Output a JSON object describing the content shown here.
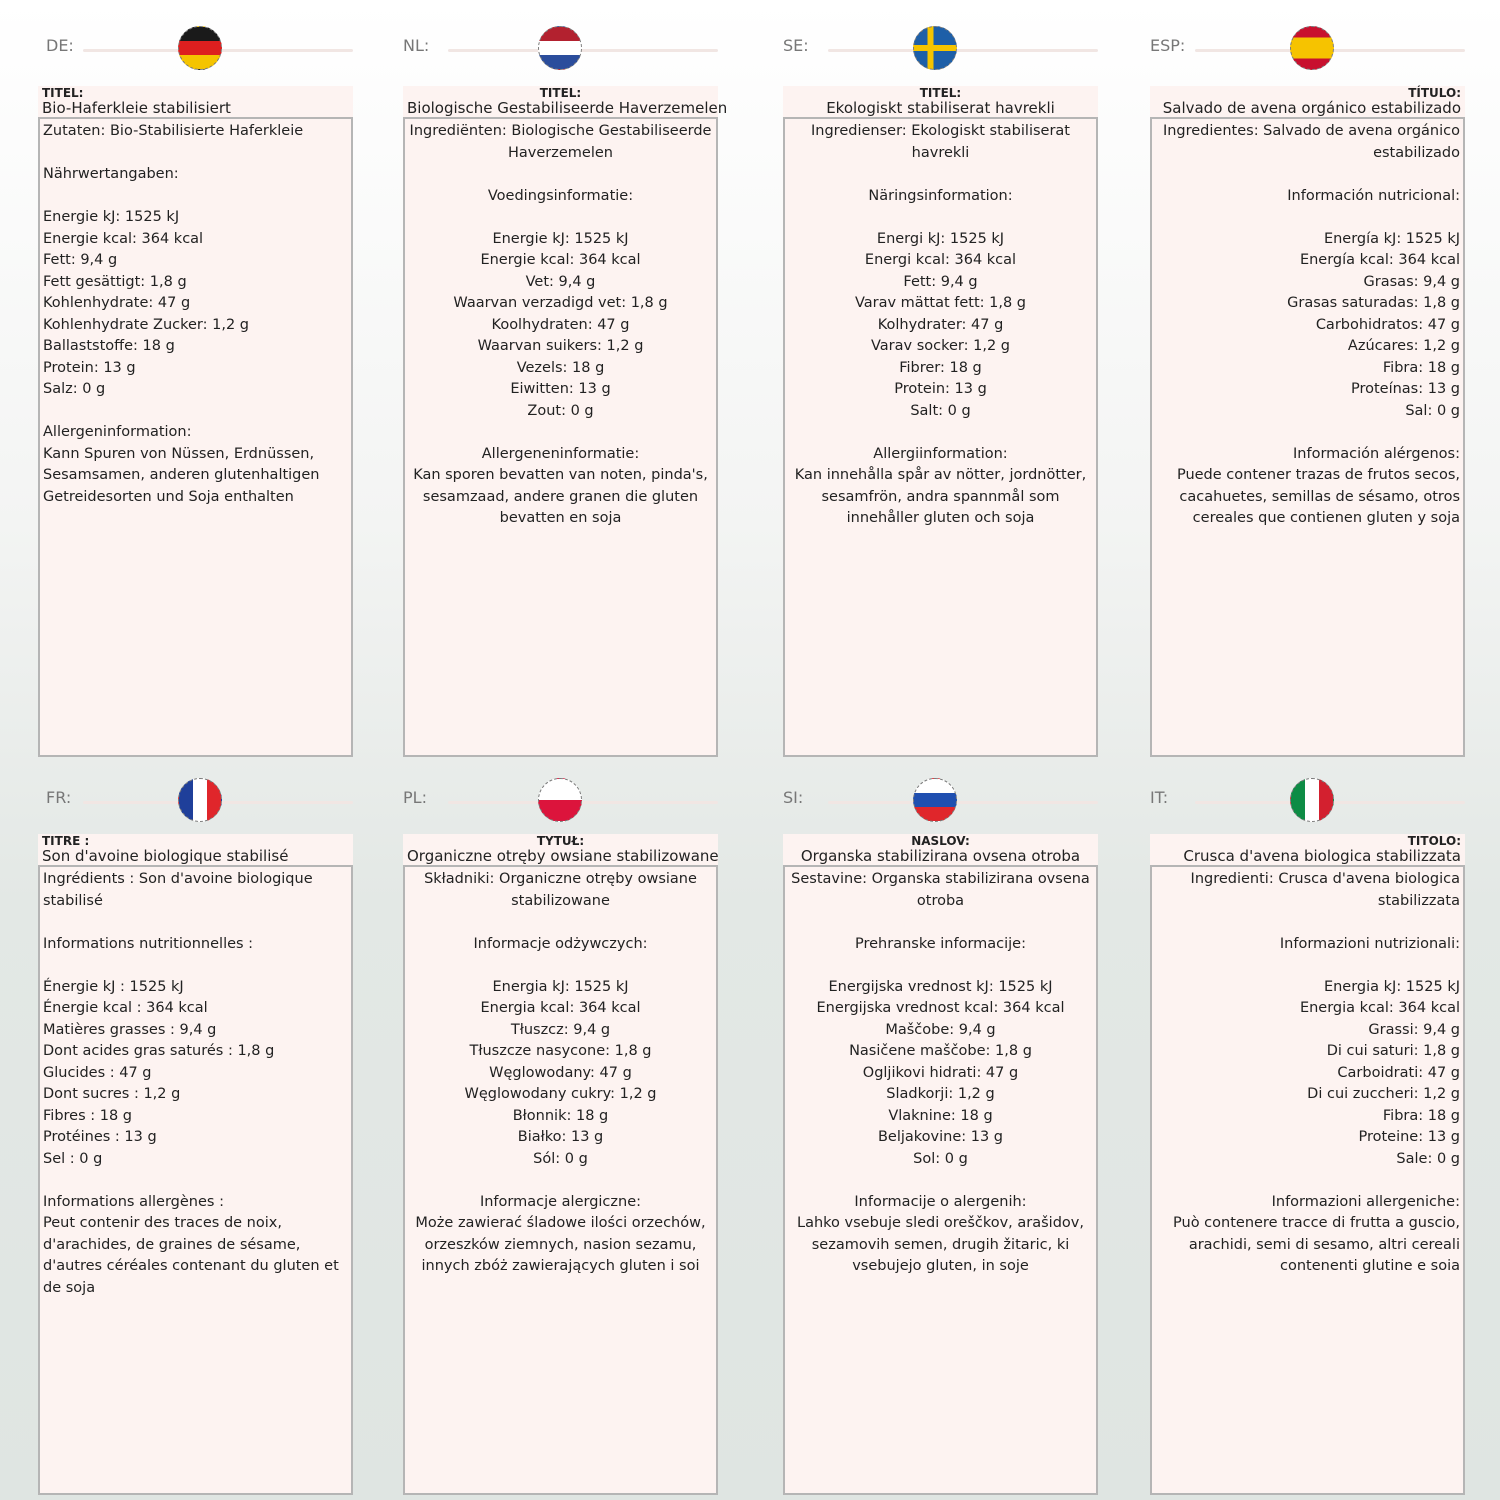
{
  "panels": [
    {
      "code": "DE:",
      "flag": "de",
      "align": "left",
      "title_label": "TITEL:",
      "title": "Bio-Haferkleie stabilisiert",
      "lines": [
        "Zutaten: Bio-Stabilisierte Haferkleie",
        "",
        "Nährwertangaben:",
        "",
        "Energie kJ: 1525 kJ",
        "Energie kcal: 364 kcal",
        "Fett: 9,4 g",
        "Fett gesättigt: 1,8 g",
        "Kohlenhydrate: 47 g",
        "Kohlenhydrate Zucker: 1,2 g",
        "Ballaststoffe: 18 g",
        "Protein: 13 g",
        "Salz: 0 g",
        "",
        "Allergeninformation:",
        "Kann Spuren von Nüssen, Erdnüssen,",
        "Sesamsamen, anderen glutenhaltigen",
        "Getreidesorten und Soja enthalten"
      ]
    },
    {
      "code": "NL:",
      "flag": "nl",
      "align": "center",
      "title_label": "TITEL:",
      "title": "Biologische Gestabiliseerde Haverzemelen",
      "lines": [
        "Ingrediënten: Biologische Gestabiliseerde",
        "Haverzemelen",
        "",
        "Voedingsinformatie:",
        "",
        "Energie kJ: 1525 kJ",
        "Energie kcal: 364 kcal",
        "Vet: 9,4 g",
        "Waarvan verzadigd vet: 1,8 g",
        "Koolhydraten: 47 g",
        "Waarvan suikers: 1,2 g",
        "Vezels: 18 g",
        "Eiwitten: 13 g",
        "Zout: 0 g",
        "",
        "Allergeneninformatie:",
        "Kan sporen bevatten van noten, pinda's,",
        "sesamzaad, andere granen die gluten",
        "bevatten en soja"
      ]
    },
    {
      "code": "SE:",
      "flag": "se",
      "align": "center",
      "title_label": "TITEL:",
      "title": "Ekologiskt stabiliserat havrekli",
      "lines": [
        "Ingredienser: Ekologiskt stabiliserat",
        "havrekli",
        "",
        "Näringsinformation:",
        "",
        "Energi kJ: 1525 kJ",
        "Energi kcal: 364 kcal",
        "Fett: 9,4 g",
        "Varav mättat fett: 1,8 g",
        "Kolhydrater: 47 g",
        "Varav socker: 1,2 g",
        "Fibrer: 18 g",
        "Protein: 13 g",
        "Salt: 0 g",
        "",
        "Allergiinformation:",
        "Kan innehålla spår av nötter, jordnötter,",
        "sesamfrön, andra spannmål som",
        "innehåller gluten och soja"
      ]
    },
    {
      "code": "ESP:",
      "flag": "es",
      "align": "right",
      "title_label": "TÍTULO:",
      "title": "Salvado de avena orgánico estabilizado",
      "lines": [
        "Ingredientes: Salvado de avena orgánico",
        "estabilizado",
        "",
        "Información nutricional:",
        "",
        "Energía kJ: 1525 kJ",
        "Energía kcal: 364 kcal",
        "Grasas: 9,4 g",
        "Grasas saturadas: 1,8 g",
        "Carbohidratos: 47 g",
        "Azúcares: 1,2 g",
        "Fibra: 18 g",
        "Proteínas: 13 g",
        "Sal: 0 g",
        "",
        "Información alérgenos:",
        "Puede contener trazas de frutos secos,",
        "cacahuetes, semillas de sésamo, otros",
        "cereales que contienen gluten y soja"
      ]
    },
    {
      "code": "FR:",
      "flag": "fr",
      "align": "left",
      "title_label": "TITRE :",
      "title": "Son d'avoine biologique stabilisé",
      "lines": [
        "Ingrédients : Son d'avoine biologique",
        "stabilisé",
        "",
        "Informations nutritionnelles :",
        "",
        "Énergie kJ : 1525 kJ",
        "Énergie kcal : 364 kcal",
        "Matières grasses : 9,4 g",
        "Dont acides gras saturés : 1,8 g",
        "Glucides : 47 g",
        "Dont sucres : 1,2 g",
        "Fibres : 18 g",
        "Protéines : 13 g",
        "Sel : 0 g",
        "",
        "Informations allergènes :",
        "Peut contenir des traces de noix,",
        "d'arachides, de graines de sésame,",
        "d'autres céréales contenant du gluten et",
        "de soja"
      ]
    },
    {
      "code": "PL:",
      "flag": "pl",
      "align": "center",
      "title_label": "TYTUŁ:",
      "title": "Organiczne otręby owsiane stabilizowane",
      "lines": [
        "Składniki: Organiczne otręby owsiane",
        "stabilizowane",
        "",
        "Informacje odżywczych:",
        "",
        "Energia kJ: 1525 kJ",
        "Energia kcal: 364 kcal",
        "Tłuszcz: 9,4 g",
        "Tłuszcze nasycone: 1,8 g",
        "Węglowodany: 47 g",
        "Węglowodany cukry: 1,2 g",
        "Błonnik: 18 g",
        "Białko: 13 g",
        "Sól: 0 g",
        "",
        "Informacje alergiczne:",
        "Może zawierać śladowe ilości orzechów,",
        "orzeszków ziemnych, nasion sezamu,",
        "innych zbóż zawierających gluten i soi"
      ]
    },
    {
      "code": "SI:",
      "flag": "si",
      "align": "center",
      "title_label": "NASLOV:",
      "title": "Organska stabilizirana ovsena otroba",
      "lines": [
        "Sestavine: Organska stabilizirana ovsena",
        "otroba",
        "",
        "Prehranske informacije:",
        "",
        "Energijska vrednost kJ: 1525 kJ",
        "Energijska vrednost kcal: 364 kcal",
        "Maščobe: 9,4 g",
        "Nasičene maščobe: 1,8 g",
        "Ogljikovi hidrati: 47 g",
        "Sladkorji: 1,2 g",
        "Vlaknine: 18 g",
        "Beljakovine: 13 g",
        "Sol: 0 g",
        "",
        "Informacije o alergenih:",
        "Lahko vsebuje sledi oreščkov, arašidov,",
        "sezamovih semen, drugih žitaric, ki",
        "vsebujejo gluten, in soje"
      ]
    },
    {
      "code": "IT:",
      "flag": "it",
      "align": "right",
      "title_label": "TITOLO:",
      "title": "Crusca d'avena biologica stabilizzata",
      "lines": [
        "Ingredienti: Crusca d'avena biologica",
        "stabilizzata",
        "",
        "Informazioni nutrizionali:",
        "",
        "Energia kJ: 1525 kJ",
        "Energia kcal: 364 kcal",
        "Grassi: 9,4 g",
        "Di cui saturi: 1,8 g",
        "Carboidrati: 47 g",
        "Di cui zuccheri: 1,2 g",
        "Fibra: 18 g",
        "Proteine: 13 g",
        "Sale: 0 g",
        "",
        "Informazioni allergeniche:",
        "Può contenere tracce di frutta a guscio,",
        "arachidi, semi di sesamo, altri cereali",
        "contenenti glutine e soia"
      ]
    }
  ],
  "flag_colors": {
    "de": [
      "#1a1a1a",
      "#dd1f1f",
      "#f5c400"
    ],
    "nl": [
      "#b3212f",
      "#ffffff",
      "#2b4d9c"
    ],
    "se": [
      "#1d5fa8",
      "#f5c400"
    ],
    "es": [
      "#c8102e",
      "#f6c300"
    ],
    "fr": [
      "#1f3f9a",
      "#ffffff",
      "#e0262b"
    ],
    "pl": [
      "#ffffff",
      "#dc143c"
    ],
    "si": [
      "#ffffff",
      "#1f4fb0",
      "#e0262b"
    ],
    "it": [
      "#0d8c45",
      "#ffffff",
      "#d3202f"
    ]
  }
}
